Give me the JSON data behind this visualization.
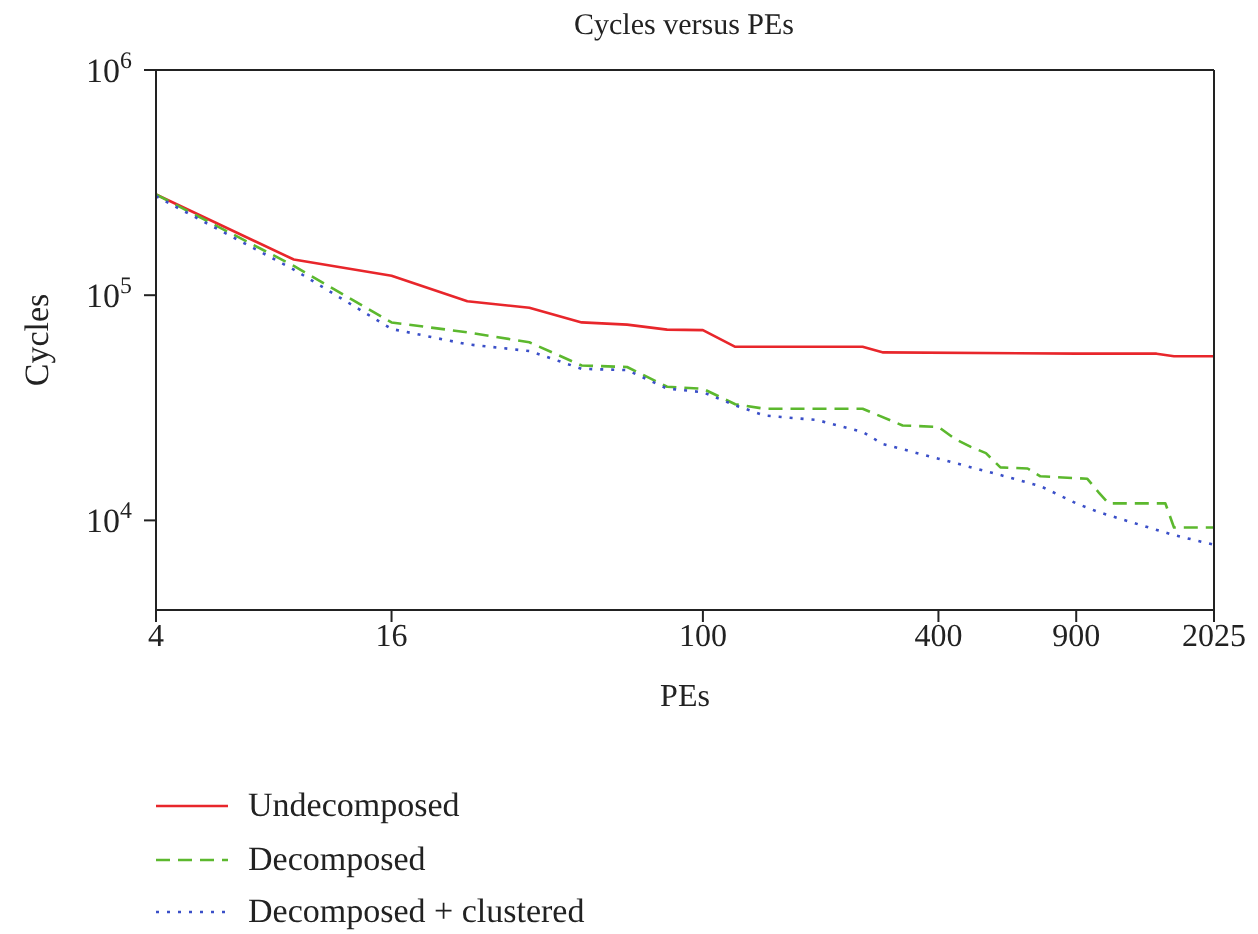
{
  "chart_data": {
    "type": "line",
    "title": "Cycles versus PEs",
    "xlabel": "PEs",
    "ylabel": "Cycles",
    "log": "xy",
    "xlim": [
      4,
      2025
    ],
    "xticks": [
      4,
      16,
      100,
      400,
      900,
      2025
    ],
    "ylim": [
      4000,
      1000000
    ],
    "yticks": [
      {
        "value": 10000,
        "label": "10$^{4}$"
      },
      {
        "value": 100000,
        "label": "10$^{5}$"
      },
      {
        "value": 1000000,
        "label": "10$^{6}$"
      }
    ],
    "legend": "bottom left",
    "marker": "none",
    "series": [
      {
        "name": "Undecomposed",
        "color": "#e8262b",
        "line_style": "solid",
        "x": [
          4,
          9,
          16,
          25,
          36,
          49,
          64,
          81,
          100,
          121,
          256,
          289,
          900,
          1444,
          1600,
          2025
        ],
        "values": [
          280000,
          144000,
          122000,
          94000,
          88000,
          75700,
          74000,
          70300,
          70000,
          59000,
          59000,
          55700,
          55000,
          55000,
          53600,
          53600
        ]
      },
      {
        "name": "Decomposed",
        "color": "#5cb82e",
        "line_style": "dashed",
        "x": [
          4,
          9,
          16,
          25,
          36,
          49,
          64,
          81,
          100,
          121,
          144,
          256,
          324,
          400,
          441,
          484,
          529,
          576,
          676,
          729,
          961,
          1024,
          1089,
          1521,
          1600,
          2025
        ],
        "values": [
          280000,
          135000,
          75700,
          68400,
          61800,
          48700,
          48000,
          39200,
          38400,
          32800,
          31300,
          31300,
          26400,
          26000,
          23000,
          21200,
          19900,
          17200,
          17000,
          15700,
          15300,
          13400,
          11900,
          11900,
          9300,
          9300
        ]
      },
      {
        "name": "Decomposed + clustered",
        "color": "#3a4fc8",
        "line_style": "dotted",
        "x": [
          4,
          9,
          16,
          25,
          36,
          49,
          64,
          81,
          100,
          121,
          144,
          196,
          256,
          289,
          400,
          576,
          729,
          900,
          1024,
          1225,
          1600,
          2025
        ],
        "values": [
          275000,
          130000,
          70800,
          60500,
          56500,
          47100,
          46500,
          38500,
          37100,
          32400,
          29200,
          27900,
          24700,
          21800,
          18800,
          15900,
          14200,
          11900,
          10900,
          9900,
          8600,
          7800
        ]
      }
    ]
  }
}
